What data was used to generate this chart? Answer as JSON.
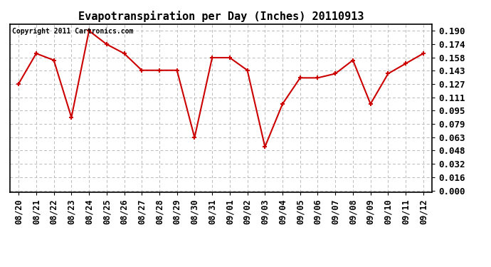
{
  "title": "Evapotranspiration per Day (Inches) 20110913",
  "copyright": "Copyright 2011 Cartronics.com",
  "x_labels": [
    "08/20",
    "08/21",
    "08/22",
    "08/23",
    "08/24",
    "08/25",
    "08/26",
    "08/27",
    "08/28",
    "08/29",
    "08/30",
    "08/31",
    "09/01",
    "09/02",
    "09/03",
    "09/04",
    "09/05",
    "09/06",
    "09/07",
    "09/08",
    "09/09",
    "09/10",
    "09/11",
    "09/12"
  ],
  "y_values": [
    0.127,
    0.163,
    0.155,
    0.087,
    0.19,
    0.174,
    0.163,
    0.143,
    0.143,
    0.143,
    0.063,
    0.158,
    0.158,
    0.143,
    0.052,
    0.103,
    0.134,
    0.134,
    0.139,
    0.155,
    0.103,
    0.139,
    0.151,
    0.163
  ],
  "yticks": [
    0.0,
    0.016,
    0.032,
    0.048,
    0.063,
    0.079,
    0.095,
    0.111,
    0.127,
    0.143,
    0.158,
    0.174,
    0.19
  ],
  "line_color": "#cc0000",
  "marker_color": "#cc0000",
  "bg_color": "#ffffff",
  "grid_color": "#bbbbbb",
  "title_fontsize": 11,
  "copyright_fontsize": 7,
  "tick_fontsize": 8.5,
  "ytick_fontsize": 9
}
